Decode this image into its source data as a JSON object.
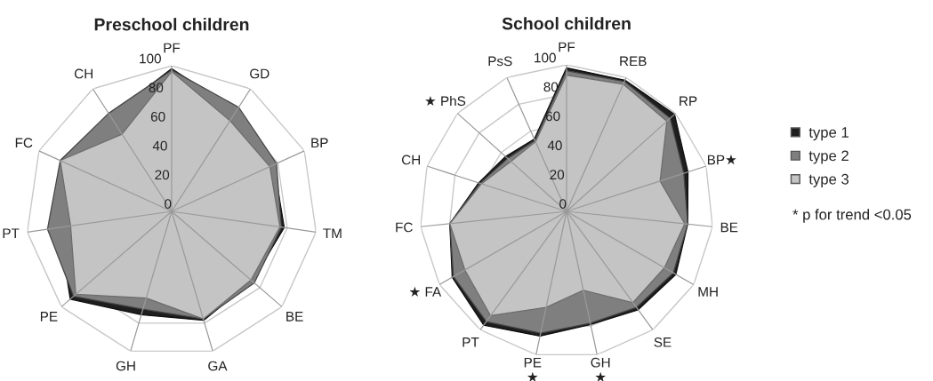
{
  "chart_data": [
    {
      "type": "radar",
      "title": "Preschool children",
      "categories": [
        "PF",
        "GD",
        "BP",
        "TM",
        "BE",
        "GA",
        "GH",
        "PE",
        "PT",
        "FC",
        "CH"
      ],
      "ylim": [
        0,
        100
      ],
      "yticks": [
        0,
        20,
        40,
        60,
        80,
        100
      ],
      "grid": true,
      "series": [
        {
          "color": "#1e1e1e",
          "values": [
            98,
            82,
            77,
            78,
            73,
            78,
            74,
            92,
            78,
            84,
            78
          ]
        },
        {
          "color": "#7f7f7f",
          "values": [
            97,
            85,
            79,
            76,
            75,
            77,
            70,
            89,
            86,
            84,
            80
          ]
        },
        {
          "color": "#c4c4c4",
          "values": [
            96,
            74,
            74,
            75,
            72,
            77,
            62,
            87,
            70,
            84,
            63
          ]
        }
      ]
    },
    {
      "type": "radar",
      "title": "School children",
      "categories": [
        "PF",
        "REB",
        "RP",
        "BP★",
        "BE",
        "MH",
        "SE",
        "GH\n★",
        "PE\n★",
        "PT",
        "★ FA",
        "FC",
        "CH",
        "★ PhS",
        "PsS"
      ],
      "ylim": [
        0,
        100
      ],
      "yticks": [
        0,
        20,
        40,
        60,
        80,
        100
      ],
      "grid": true,
      "legend": "right",
      "annotations": [
        "* p for trend <0.05"
      ],
      "series": [
        {
          "name": "type 1",
          "color": "#1e1e1e",
          "values": [
            98,
            98,
            99,
            87,
            83,
            86,
            83,
            79,
            87,
            96,
            90,
            80,
            63,
            56,
            54
          ]
        },
        {
          "name": "type 2",
          "color": "#7f7f7f",
          "values": [
            96,
            97,
            95,
            84,
            83,
            84,
            81,
            78,
            85,
            93,
            89,
            80,
            62,
            54,
            53
          ]
        },
        {
          "name": "type 3",
          "color": "#c4c4c4",
          "values": [
            93,
            95,
            92,
            67,
            81,
            77,
            77,
            55,
            67,
            88,
            80,
            80,
            61,
            51,
            52
          ]
        }
      ]
    }
  ]
}
